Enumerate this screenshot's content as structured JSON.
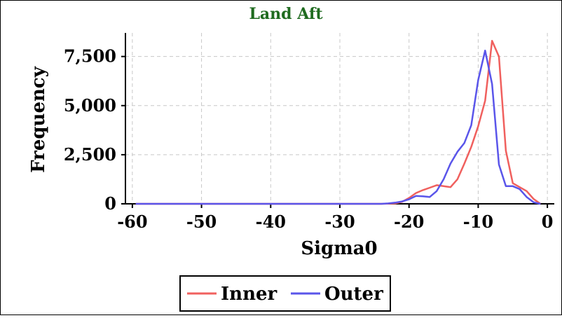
{
  "chart_data": {
    "type": "line",
    "title": "Land Aft",
    "xlabel": "Sigma0",
    "ylabel": "Frequency",
    "xlim": [
      -61,
      1
    ],
    "ylim": [
      0,
      8700
    ],
    "xticks": [
      -60,
      -50,
      -40,
      -30,
      -20,
      -10,
      0
    ],
    "xtick_labels": [
      "-60",
      "-50",
      "-40",
      "-30",
      "-20",
      "-10",
      "0"
    ],
    "yticks": [
      0,
      2500,
      5000,
      7500
    ],
    "ytick_labels": [
      "0",
      "2,500",
      "5,000",
      "7,500"
    ],
    "grid": true,
    "legend_position": "bottom-center",
    "colors": {
      "title": "#1f6b1f",
      "inner": "#f0605e",
      "outer": "#5a55ea",
      "grid": "#c8c8c8"
    },
    "series": [
      {
        "name": "Inner",
        "x": [
          -59.5,
          -50,
          -40,
          -30,
          -24,
          -22,
          -21,
          -20,
          -19,
          -18,
          -17,
          -16,
          -15,
          -14,
          -13,
          -12,
          -11,
          -10,
          -9,
          -8,
          -7,
          -6,
          -5,
          -4,
          -3,
          -2,
          -1
        ],
        "y": [
          0,
          0,
          0,
          0,
          0,
          20,
          100,
          300,
          550,
          700,
          820,
          950,
          900,
          850,
          1250,
          2050,
          2900,
          3950,
          5250,
          8300,
          7500,
          2700,
          1050,
          850,
          650,
          250,
          0
        ]
      },
      {
        "name": "Outer",
        "x": [
          -59.5,
          -50,
          -40,
          -30,
          -24,
          -23,
          -22,
          -21,
          -20,
          -19,
          -18,
          -17,
          -16,
          -15,
          -14,
          -13,
          -12,
          -11,
          -10,
          -9,
          -8,
          -7,
          -6,
          -5,
          -4,
          -3,
          -2,
          -1
        ],
        "y": [
          0,
          0,
          0,
          0,
          0,
          20,
          60,
          120,
          230,
          400,
          380,
          350,
          650,
          1250,
          2050,
          2650,
          3100,
          4000,
          6300,
          7800,
          6100,
          2000,
          900,
          900,
          750,
          350,
          80,
          0
        ]
      }
    ]
  }
}
